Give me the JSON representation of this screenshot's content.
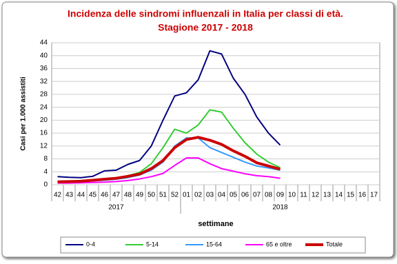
{
  "chart_data": {
    "type": "line",
    "title": "Incidenza delle sindromi influenzali in Italia per classi di età.",
    "subtitle": "Stagione 2017 - 2018",
    "y_label": "Casi per 1.000 assistiti",
    "x_label": "settimane",
    "categories": [
      "42",
      "43",
      "44",
      "45",
      "46",
      "47",
      "48",
      "49",
      "50",
      "51",
      "52",
      "01",
      "02",
      "03",
      "04",
      "05",
      "06",
      "07",
      "08",
      "09",
      "10",
      "11",
      "12",
      "13",
      "14",
      "15",
      "16",
      "17"
    ],
    "x_groups": [
      "2017",
      "2018"
    ],
    "ylim": [
      0,
      44
    ],
    "yticks": [
      0,
      4,
      8,
      12,
      16,
      20,
      24,
      28,
      32,
      36,
      40,
      44
    ],
    "grid": true,
    "series": [
      {
        "name": "0-4",
        "color": "#000080",
        "width": 2,
        "values": [
          2.5,
          2.3,
          2.2,
          2.6,
          4.3,
          4.5,
          6.3,
          7.5,
          12,
          20,
          27.5,
          28.5,
          32.5,
          41.5,
          40.5,
          33,
          28,
          21,
          16,
          12.3,
          null,
          null,
          null,
          null,
          null,
          null,
          null,
          null
        ]
      },
      {
        "name": "5-14",
        "color": "#33cc33",
        "width": 2,
        "values": [
          0.8,
          0.9,
          1.0,
          1.3,
          1.6,
          2.0,
          2.8,
          3.8,
          6.5,
          11.5,
          17.2,
          16,
          18.5,
          23.2,
          22.5,
          17.5,
          13,
          9.5,
          7,
          5.3,
          null,
          null,
          null,
          null,
          null,
          null,
          null,
          null
        ]
      },
      {
        "name": "15-64",
        "color": "#3399ff",
        "width": 2,
        "values": [
          0.7,
          0.8,
          1.0,
          1.2,
          1.4,
          1.7,
          2.2,
          3.0,
          4.5,
          7,
          12,
          14.5,
          14.5,
          11.5,
          10,
          8.5,
          7,
          5.8,
          5.2,
          4.5,
          null,
          null,
          null,
          null,
          null,
          null,
          null,
          null
        ]
      },
      {
        "name": "65 e oltre",
        "color": "#ff00ff",
        "width": 2,
        "values": [
          0.5,
          0.5,
          0.6,
          0.7,
          0.8,
          1.0,
          1.3,
          1.8,
          2.5,
          3.5,
          6,
          8.3,
          8.3,
          6.5,
          5,
          4.2,
          3.4,
          2.8,
          2.5,
          2.0,
          null,
          null,
          null,
          null,
          null,
          null,
          null,
          null
        ]
      },
      {
        "name": "Totale",
        "color": "#cc0000",
        "width": 4,
        "values": [
          0.9,
          1.0,
          1.1,
          1.4,
          1.7,
          2.0,
          2.6,
          3.3,
          5,
          7.5,
          11.5,
          14,
          14.7,
          13.8,
          12.5,
          10.5,
          8.8,
          6.8,
          5.8,
          4.8,
          null,
          null,
          null,
          null,
          null,
          null,
          null,
          null
        ]
      }
    ]
  }
}
